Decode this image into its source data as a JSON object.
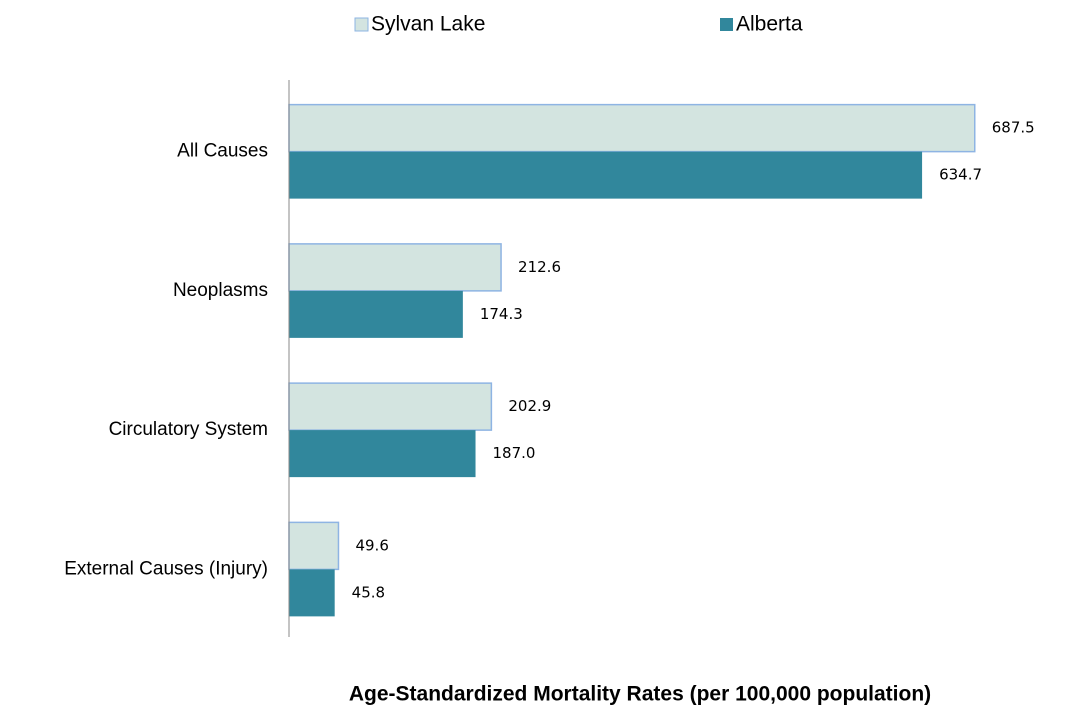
{
  "chart_data": {
    "type": "hbar",
    "x_label": "Age-Standardized Mortality Rates (per 100,000 population)",
    "categories": [
      "All Causes",
      "Neoplasms",
      "Circulatory System",
      "External Causes (Injury)"
    ],
    "series": [
      {
        "name": "Sylvan Lake",
        "color": "#d3e4e0",
        "stroke": "#8eb4e3",
        "values": [
          687.5,
          212.6,
          202.9,
          49.6
        ],
        "value_labels": [
          "687.5",
          "212.6",
          "202.9",
          "49.6"
        ]
      },
      {
        "name": "Alberta",
        "color": "#31879c",
        "values": [
          634.7,
          174.3,
          187.0,
          45.8
        ],
        "value_labels": [
          "634.7",
          "174.3",
          "187.0",
          "45.8"
        ]
      }
    ],
    "xlim": [
      0,
      785
    ],
    "legend": "top"
  }
}
